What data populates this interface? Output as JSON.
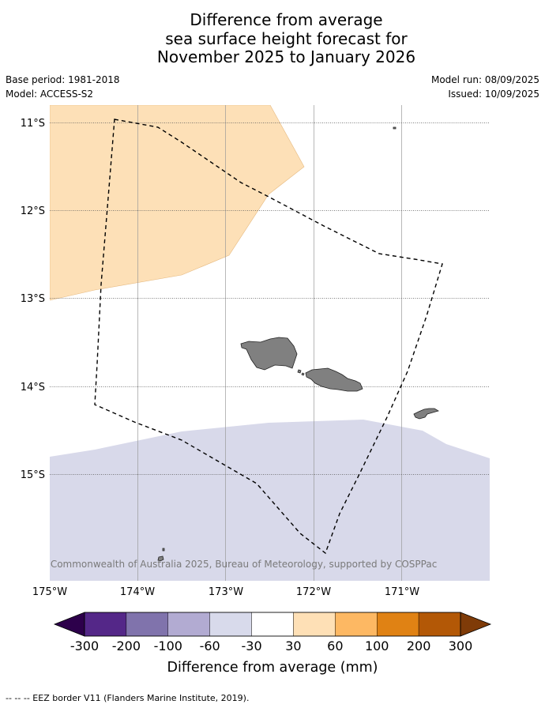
{
  "title_lines": [
    "Difference from average",
    "sea surface height forecast for",
    "November 2025 to January 2026"
  ],
  "meta": {
    "base_period": "Base period: 1981-2018",
    "model": "Model: ACCESS-S2",
    "model_run": "Model run: 08/09/2025",
    "issued": "Issued: 10/09/2025"
  },
  "map": {
    "lat_labels": [
      "11°S",
      "12°S",
      "13°S",
      "14°S",
      "15°S"
    ],
    "lon_labels": [
      "175°W",
      "174°W",
      "173°W",
      "172°W",
      "171°W"
    ],
    "credit": "© Commonwealth of Australia 2025, Bureau of Meteorology, supported by COSPPac",
    "anomaly_colors": {
      "positive_30_60": "#fde0b7",
      "negative_30_60": "#d8d9ea",
      "land": "#808080"
    }
  },
  "colorbar": {
    "title": "Difference from average (mm)",
    "tick_labels": [
      "-300",
      "-200",
      "-100",
      "-60",
      "-30",
      "30",
      "60",
      "100",
      "200",
      "300"
    ],
    "colors": [
      "#2d004b",
      "#542788",
      "#8073ac",
      "#b2abd2",
      "#d8daeb",
      "#ffffff",
      "#fee0b6",
      "#fdb863",
      "#e08214",
      "#b35806",
      "#7f3b08"
    ]
  },
  "footnote": "--  --  -- EEZ border V11 (Flanders Marine Institute, 2019)."
}
